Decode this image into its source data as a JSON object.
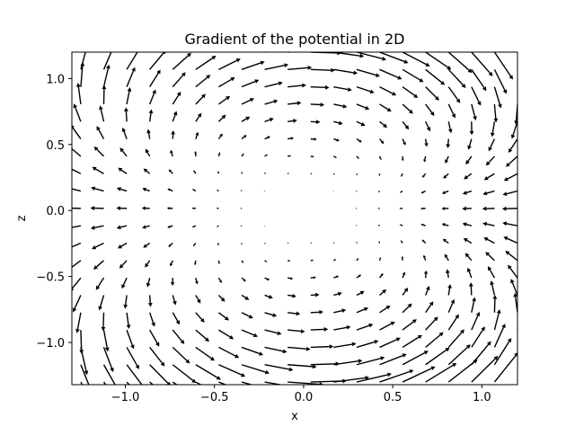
{
  "chart_data": {
    "type": "quiver",
    "title": "Gradient of the potential in 2D",
    "xlabel": "x",
    "ylabel": "z",
    "xlim": [
      -1.3,
      1.2
    ],
    "ylim": [
      -1.32,
      1.2
    ],
    "xticks": [
      -1.0,
      -0.5,
      0.0,
      0.5,
      1.0
    ],
    "xtick_labels": [
      "−1.0",
      "−0.5",
      "0.0",
      "0.5",
      "1.0"
    ],
    "yticks": [
      -1.0,
      -0.5,
      0.0,
      0.5,
      1.0
    ],
    "ytick_labels": [
      "−1.0",
      "−0.5",
      "0.0",
      "0.5",
      "1.0"
    ],
    "grid": false,
    "arrow_color": "#000000",
    "field": {
      "expression": "E(x, z) = (-x^2 + 2 z^2, -2 x z)",
      "x_range": [
        -1.25,
        1.2
      ],
      "z_range": [
        -1.3,
        1.2
      ],
      "n_x": 20,
      "n_z": 20
    }
  }
}
